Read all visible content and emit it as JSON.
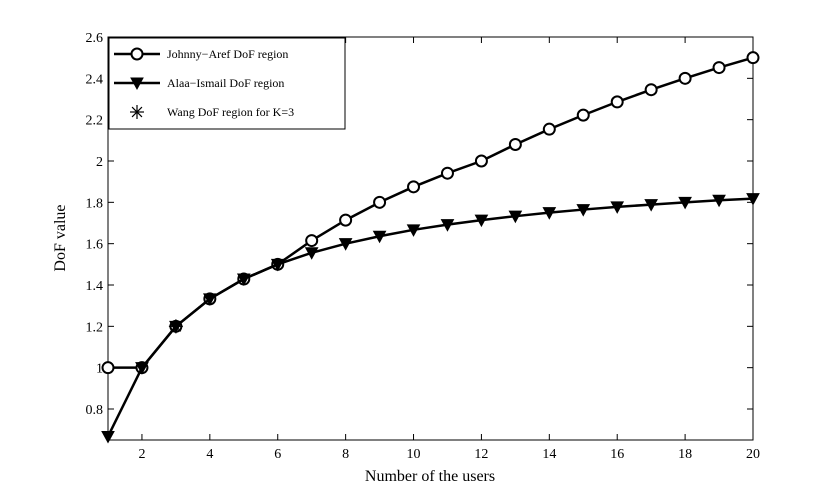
{
  "chart_data": {
    "type": "line",
    "xlabel": "Number of the users",
    "ylabel": "DoF value",
    "xlim": [
      1,
      20
    ],
    "ylim": [
      0.65,
      2.6
    ],
    "xticks": [
      2,
      4,
      6,
      8,
      10,
      12,
      14,
      16,
      18,
      20
    ],
    "xtick_labels": [
      "2",
      "4",
      "6",
      "8",
      "10",
      "12",
      "14",
      "16",
      "18",
      "20"
    ],
    "yticks": [
      0.8,
      1.0,
      1.2,
      1.4,
      1.6,
      1.8,
      2.0,
      2.2,
      2.4,
      2.6
    ],
    "ytick_labels": [
      "0.8",
      "1",
      "1.2",
      "1.4",
      "1.6",
      "1.8",
      "2",
      "2.2",
      "2.4",
      "2.6"
    ],
    "grid": false,
    "legend_position": "top-left",
    "series": [
      {
        "name": "Johnny−Aref DoF region",
        "marker": "circle",
        "color": "#000000",
        "x": [
          1,
          2,
          3,
          4,
          5,
          6,
          7,
          8,
          9,
          10,
          11,
          12,
          13,
          14,
          15,
          16,
          17,
          18,
          19,
          20
        ],
        "values": [
          1.0,
          1.0,
          1.2,
          1.333,
          1.429,
          1.5,
          1.615,
          1.714,
          1.8,
          1.875,
          1.941,
          2.0,
          2.08,
          2.154,
          2.222,
          2.286,
          2.345,
          2.4,
          2.452,
          2.5
        ]
      },
      {
        "name": "Alaa−Ismail DoF region",
        "marker": "triangle-down",
        "color": "#000000",
        "x": [
          1,
          2,
          3,
          4,
          5,
          6,
          7,
          8,
          9,
          10,
          11,
          12,
          13,
          14,
          15,
          16,
          17,
          18,
          19,
          20
        ],
        "values": [
          0.667,
          1.0,
          1.2,
          1.333,
          1.429,
          1.5,
          1.556,
          1.6,
          1.636,
          1.667,
          1.692,
          1.714,
          1.733,
          1.75,
          1.765,
          1.778,
          1.789,
          1.8,
          1.81,
          1.818
        ]
      },
      {
        "name": "Wang DoF region for K=3",
        "marker": "asterisk",
        "color": "#000000",
        "x": [
          3
        ],
        "values": [
          1.2
        ]
      }
    ]
  }
}
